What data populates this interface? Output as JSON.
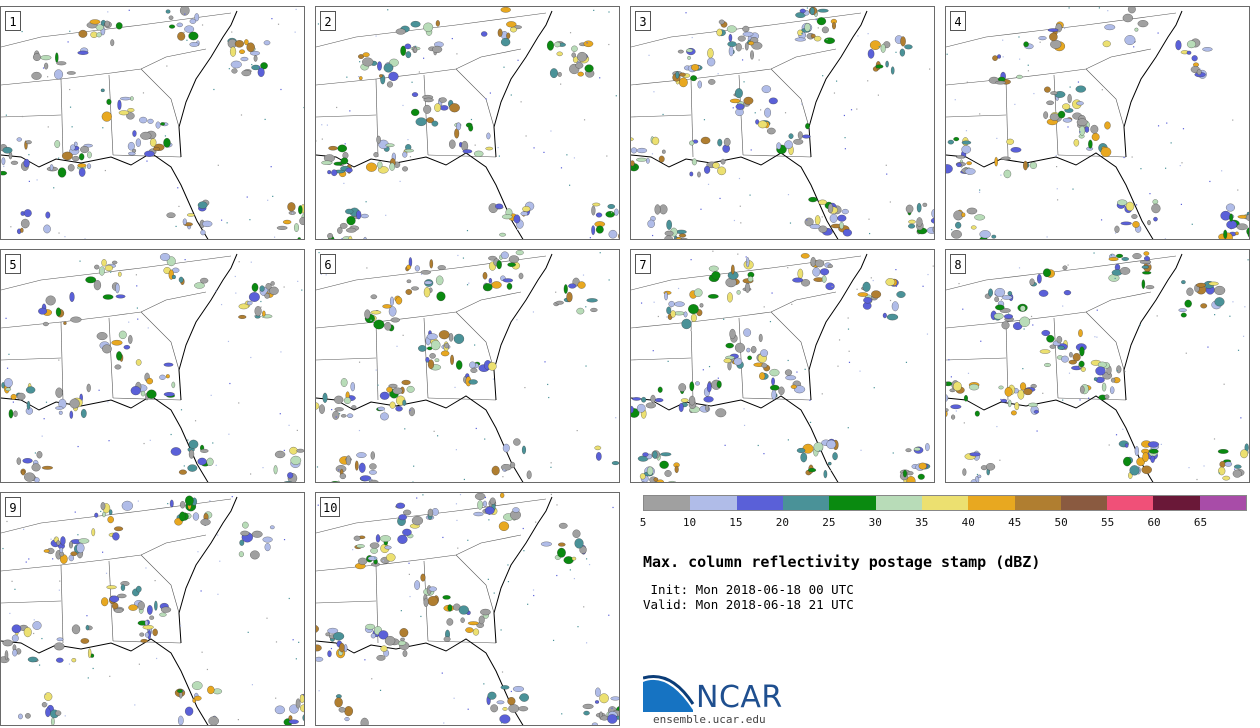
{
  "members": [
    "1",
    "2",
    "3",
    "4",
    "5",
    "6",
    "7",
    "8",
    "9",
    "10"
  ],
  "colorbar": {
    "colors": [
      "#a0a0a0",
      "#b0bce8",
      "#5a60d8",
      "#4a9298",
      "#0a8a10",
      "#b8dcb8",
      "#ece070",
      "#e8a820",
      "#b07e30",
      "#8a5a40",
      "#f05078",
      "#6a1838",
      "#a84ca8"
    ],
    "ticks": [
      "5",
      "10",
      "15",
      "20",
      "25",
      "30",
      "35",
      "40",
      "45",
      "50",
      "55",
      "60",
      "65"
    ]
  },
  "title": "Max. column reflectivity postage stamp (dBZ)",
  "init_line": " Init: Mon 2018-06-18 00 UTC",
  "valid_line": "Valid: Mon 2018-06-18 21 UTC",
  "logo": {
    "name": "NCAR",
    "site": "ensemble.ucar.edu"
  }
}
